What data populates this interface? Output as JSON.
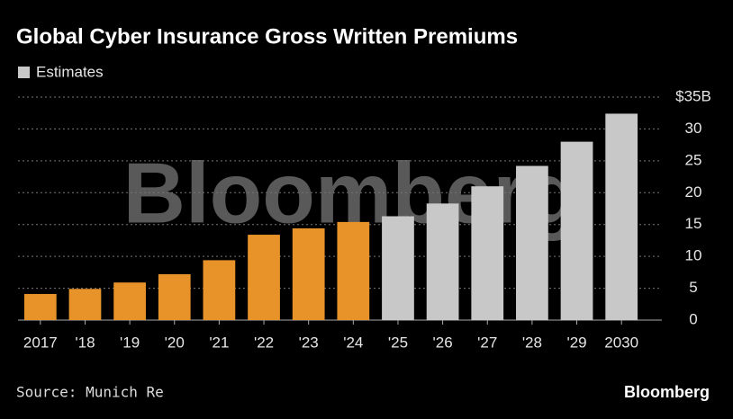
{
  "chart_data": {
    "type": "bar",
    "title": "Global Cyber Insurance Gross Written Premiums",
    "legend": [
      {
        "label": "Estimates",
        "color": "#c8c8c8"
      }
    ],
    "categories": [
      "2017",
      "'18",
      "'19",
      "'20",
      "'21",
      "'22",
      "'23",
      "'24",
      "'25",
      "'26",
      "'27",
      "'28",
      "'29",
      "2030"
    ],
    "values": [
      4.1,
      4.9,
      5.9,
      7.2,
      9.4,
      13.4,
      14.4,
      15.4,
      16.3,
      18.3,
      21.0,
      24.2,
      28.0,
      32.4
    ],
    "colors": [
      "#e8922a",
      "#e8922a",
      "#e8922a",
      "#e8922a",
      "#e8922a",
      "#e8922a",
      "#e8922a",
      "#e8922a",
      "#c8c8c8",
      "#c8c8c8",
      "#c8c8c8",
      "#c8c8c8",
      "#c8c8c8",
      "#c8c8c8"
    ],
    "ylim": [
      0,
      35
    ],
    "yticks": [
      0,
      5,
      10,
      15,
      20,
      25,
      30,
      {
        "value": 35,
        "label": "$35B"
      }
    ],
    "grid": true,
    "watermark": "Bloomberg",
    "source": "Source: Munich Re",
    "logo": "Bloomberg"
  }
}
